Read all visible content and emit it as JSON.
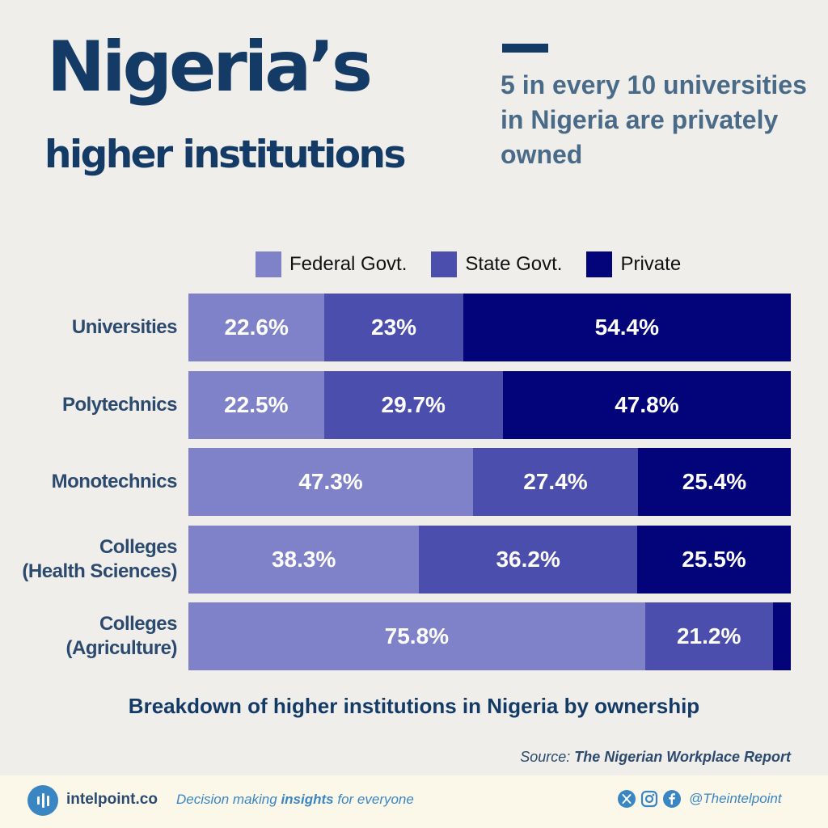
{
  "header": {
    "title_line1": "Nigeria’s",
    "title_line2": "higher institutions",
    "headline": "5 in every 10 universities in Nigeria are privately owned"
  },
  "colors": {
    "federal": "#7f82c8",
    "state": "#4b4eac",
    "private": "#03037a",
    "title": "#143a66",
    "accent_blue": "#3a86c3"
  },
  "chart_data": {
    "type": "bar",
    "orientation": "horizontal",
    "stacked": true,
    "normalized": true,
    "categories": [
      "Universities",
      "Polytechnics",
      "Monotechnics",
      "Colleges (Health Sciences)",
      "Colleges (Agriculture)"
    ],
    "category_labels": [
      [
        "Universities"
      ],
      [
        "Polytechnics"
      ],
      [
        "Monotechnics"
      ],
      [
        "Colleges",
        "(Health Sciences)"
      ],
      [
        "Colleges",
        "(Agriculture)"
      ]
    ],
    "series": [
      {
        "name": "Federal Govt.",
        "values": [
          22.6,
          22.5,
          47.3,
          38.3,
          75.8
        ],
        "labels": [
          "22.6%",
          "22.5%",
          "47.3%",
          "38.3%",
          "75.8%"
        ]
      },
      {
        "name": "State Govt.",
        "values": [
          23,
          29.7,
          27.4,
          36.2,
          21.2
        ],
        "labels": [
          "23%",
          "29.7%",
          "27.4%",
          "36.2%",
          "21.2%"
        ]
      },
      {
        "name": "Private",
        "values": [
          54.4,
          47.8,
          25.4,
          25.5,
          3.0
        ],
        "labels": [
          "54.4%",
          "47.8%",
          "25.4%",
          "25.5%",
          ""
        ]
      }
    ],
    "title": "Breakdown of higher institutions in Nigeria by ownership",
    "legend_position": "top",
    "grid": false
  },
  "source": {
    "prefix": "Source: ",
    "name": "The Nigerian Workplace Report"
  },
  "footer": {
    "brand": "intelpoint.co",
    "tagline_pre": "Decision making ",
    "tagline_bold": "insights",
    "tagline_post": " for everyone",
    "social_icons": [
      "x-icon",
      "instagram-icon",
      "facebook-icon"
    ],
    "handle": "@Theintelpoint"
  }
}
